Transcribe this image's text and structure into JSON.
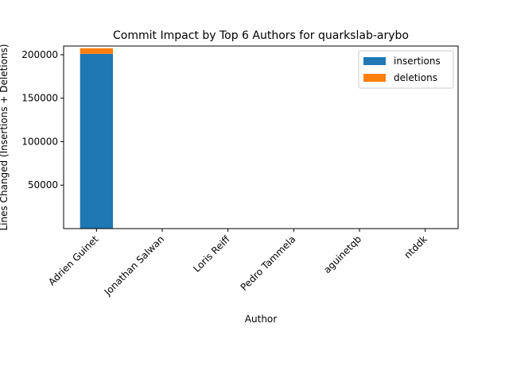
{
  "chart_data": {
    "type": "bar",
    "stacked": true,
    "title": "Commit Impact by Top 6 Authors for quarkslab-arybo",
    "xlabel": "Author",
    "ylabel": "Lines Changed (Insertions + Deletions)",
    "categories": [
      "Adrien Guinet",
      "Jonathan Salwan",
      "Loris Reiff",
      "Pedro Tammela",
      "aguinetqb",
      "ntddk"
    ],
    "series": [
      {
        "name": "insertions",
        "color": "#1f77b4",
        "values": [
          201000,
          4,
          3,
          2,
          2,
          1
        ]
      },
      {
        "name": "deletions",
        "color": "#ff7f0e",
        "values": [
          6500,
          1,
          1,
          1,
          1,
          0
        ]
      }
    ],
    "ylim": [
      0,
      210000
    ],
    "yticks": [
      50000,
      100000,
      150000,
      200000
    ],
    "ytick_labels": [
      "50000",
      "100000",
      "150000",
      "200000"
    ],
    "legend": "top-right",
    "grid": false
  }
}
